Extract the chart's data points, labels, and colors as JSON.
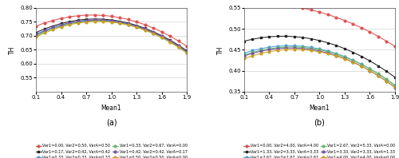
{
  "x": [
    0.1,
    0.2,
    0.3,
    0.4,
    0.5,
    0.6,
    0.7,
    0.8,
    0.9,
    1.0,
    1.1,
    1.2,
    1.3,
    1.4,
    1.5,
    1.6,
    1.7,
    1.8,
    1.9
  ],
  "panel_a": {
    "title": "(a)",
    "xlabel": "Mean1",
    "ylabel": "TH",
    "ylim": [
      0.5,
      0.8
    ],
    "yticks": [
      0.55,
      0.6,
      0.65,
      0.7,
      0.75,
      0.8
    ],
    "xticks": [
      0.1,
      0.4,
      0.7,
      1.0,
      1.3,
      1.6,
      1.9
    ],
    "series": [
      {
        "peak": 0.77,
        "k": 0.088,
        "asym": -0.04,
        "color": "#e05050",
        "marker": "o",
        "label": "Var1=0.00, Var2=0.50, VarA=0.50"
      },
      {
        "peak": 0.757,
        "k": 0.096,
        "asym": -0.036,
        "color": "#222222",
        "marker": "s",
        "label": "Var1=0.17, Var2=0.42, VarA=0.42"
      },
      {
        "peak": 0.753,
        "k": 0.099,
        "asym": -0.034,
        "color": "#4a9fd4",
        "marker": "o",
        "label": "Var1=0.33, Var2=0.33, VarA=0.33"
      },
      {
        "peak": 0.751,
        "k": 0.1,
        "asym": -0.033,
        "color": "#68b868",
        "marker": "o",
        "label": "Var1=0.33, Var2=0.67, VarA=0.00"
      },
      {
        "peak": 0.754,
        "k": 0.098,
        "asym": -0.034,
        "color": "#7b52a6",
        "marker": "o",
        "label": "Var1=0.42, Var2=0.42, VarA=0.17"
      },
      {
        "peak": 0.749,
        "k": 0.101,
        "asym": -0.032,
        "color": "#c8a020",
        "marker": "o",
        "label": "Var1=0.50, Var2=0.50, VarA=0.00"
      }
    ]
  },
  "panel_b": {
    "title": "(b)",
    "xlabel": "Mean1",
    "ylabel": "TH",
    "ylim": [
      0.35,
      0.55
    ],
    "yticks": [
      0.35,
      0.4,
      0.45,
      0.5,
      0.55
    ],
    "xticks": [
      0.1,
      0.4,
      0.7,
      1.0,
      1.3,
      1.6,
      1.9
    ],
    "series": [
      {
        "peak": 0.54,
        "k": 0.04,
        "asym": -0.055,
        "color": "#e05050",
        "marker": "o",
        "label": "Var1=0.00, Var2=4.00, VarA=4.00"
      },
      {
        "peak": 0.472,
        "k": 0.055,
        "asym": -0.048,
        "color": "#222222",
        "marker": "s",
        "label": "Var1=1.33, Var2=3.33, VarA=3.33"
      },
      {
        "peak": 0.452,
        "k": 0.06,
        "asym": -0.043,
        "color": "#4a9fd4",
        "marker": "o",
        "label": "Var1=2.67, Var2=2.67, VarA=2.67"
      },
      {
        "peak": 0.45,
        "k": 0.06,
        "asym": -0.04,
        "color": "#68b868",
        "marker": "o",
        "label": "Var1=2.67, Var2=5.33, VarA=0.00"
      },
      {
        "peak": 0.447,
        "k": 0.061,
        "asym": -0.042,
        "color": "#7b52a6",
        "marker": "o",
        "label": "Var1=3.33, Var2=3.33, VarA=1.33"
      },
      {
        "peak": 0.445,
        "k": 0.062,
        "asym": -0.038,
        "color": "#c8a020",
        "marker": "o",
        "label": "Var1=4.00, Var2=4.00, VarA=0.00"
      }
    ]
  },
  "figure": {
    "marker_size": 2.0,
    "linewidth": 0.75,
    "legend_fontsize": 3.5,
    "axis_label_fontsize": 5.5,
    "tick_fontsize": 5.0,
    "title_fontsize": 7
  }
}
